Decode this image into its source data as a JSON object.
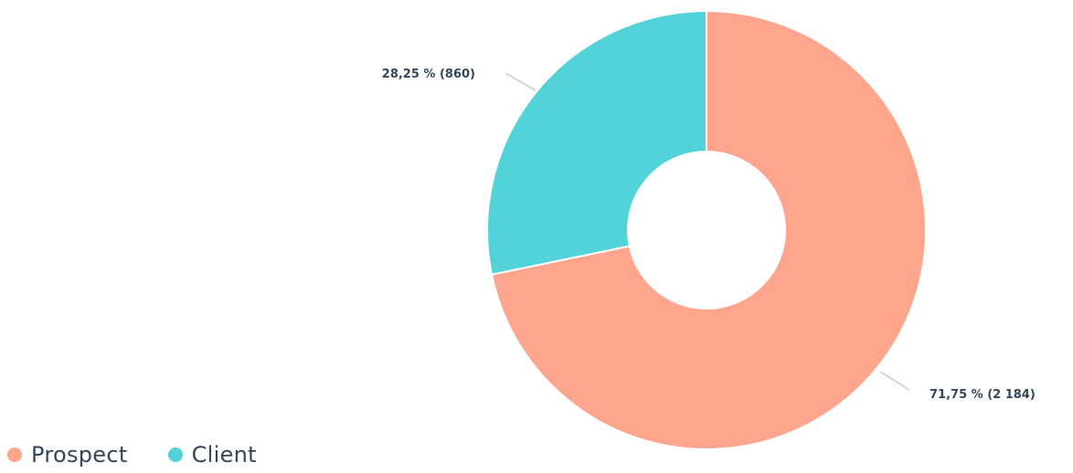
{
  "chart_data": {
    "type": "pie",
    "donut": true,
    "categories": [
      "Prospect",
      "Client"
    ],
    "values": [
      2184,
      860
    ],
    "colors": [
      "#fea58e",
      "#51d3d9"
    ],
    "data_labels": [
      "71,75 % (2 184)",
      "28,25 % (860)"
    ],
    "legend_position": "bottom-left"
  },
  "legend": {
    "items": [
      {
        "label": "Prospect",
        "color": "#fea58e"
      },
      {
        "label": "Client",
        "color": "#51d3d9"
      }
    ]
  }
}
